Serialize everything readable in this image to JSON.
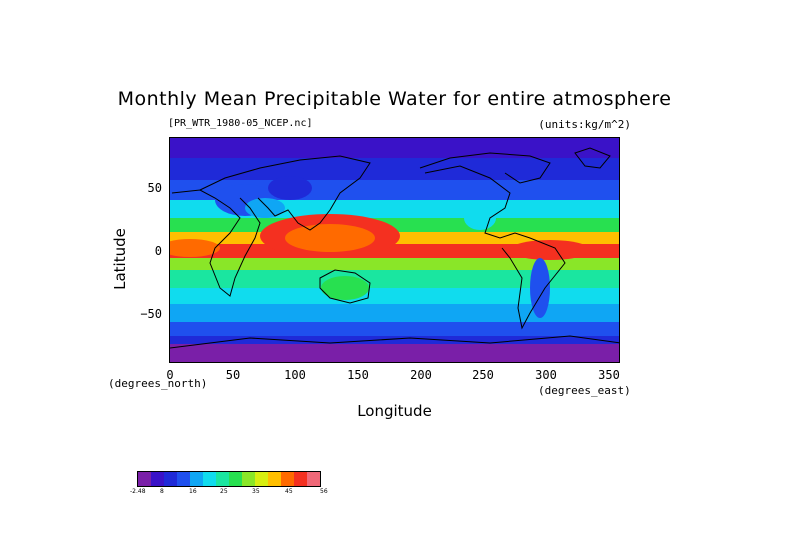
{
  "title": "Monthly Mean Precipitable Water for entire atmosphere",
  "subtitle_left": "[PR_WTR_1980-05_NCEP.nc]",
  "subtitle_right": "(units:kg/m^2)",
  "ylabel": "Latitude",
  "xlabel": "Longitude",
  "unit_left": "(degrees_north)",
  "unit_right": "(degrees_east)",
  "yticks": [
    "50",
    "0",
    "−50"
  ],
  "xticks": [
    "0",
    "50",
    "100",
    "150",
    "200",
    "250",
    "300",
    "350"
  ],
  "colorbar": {
    "colors": [
      "#7a1fa8",
      "#3a12c8",
      "#1f2ad8",
      "#1f50ee",
      "#0fa6f4",
      "#10dcee",
      "#1ae6a0",
      "#28e050",
      "#8ae628",
      "#d8ee10",
      "#ffbf00",
      "#ff6a00",
      "#f43020",
      "#f06878"
    ],
    "labels": [
      "-2.48",
      "8",
      "16",
      "25",
      "35",
      "45",
      "56"
    ]
  },
  "chart_data": {
    "type": "heatmap",
    "title": "Monthly Mean Precipitable Water for entire atmosphere",
    "xlabel": "Longitude",
    "ylabel": "Latitude",
    "xlim": [
      0,
      360
    ],
    "ylim": [
      -90,
      90
    ],
    "x_ticks": [
      0,
      50,
      100,
      150,
      200,
      250,
      300,
      350
    ],
    "y_ticks": [
      -50,
      0,
      50
    ],
    "colorbar_ticks": [
      -2.48,
      8,
      16,
      25,
      35,
      45,
      56
    ],
    "units": "kg/m^2"
  }
}
